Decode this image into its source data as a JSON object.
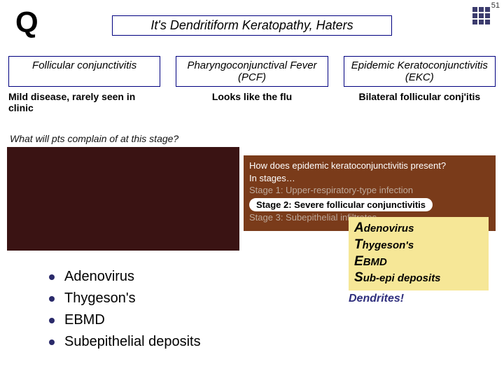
{
  "page_number": "51",
  "q_letter": "Q",
  "title": "It's Dendritiform Keratopathy, Haters",
  "col_headers": {
    "c1": "Follicular conjunctivitis",
    "c2": "Pharyngoconjunctival Fever (PCF)",
    "c3": "Epidemic Keratoconjunctivitis (EKC)"
  },
  "row2": {
    "c1": "Mild disease, rarely seen in clinic",
    "c2": "Looks like the flu",
    "c3": "Bilateral follicular conj'itis"
  },
  "question": "What will pts complain of at this stage?",
  "brown": {
    "q": "How does epidemic keratoconjunctivitis present?",
    "intro": "In stages…",
    "s1": "Stage 1: Upper-respiratory-type infection",
    "s2": "Stage 2: Severe follicular conjunctivitis",
    "s3a": "Stage 3: ",
    "s3b": "Subepithelial infiltrates"
  },
  "mnemonic": {
    "items": [
      {
        "lead": "A",
        "rest": "denovirus"
      },
      {
        "lead": "T",
        "rest": "hygeson's"
      },
      {
        "lead": "E",
        "rest": "BMD"
      },
      {
        "lead": "S",
        "rest": "ub-epi deposits"
      }
    ]
  },
  "dendrites": "Dendrites!",
  "list": {
    "items": [
      "Adenovirus",
      "Thygeson's",
      "EBMD",
      "Subepithelial deposits"
    ]
  },
  "colors": {
    "border": "#000080",
    "dark_block": "#3a1313",
    "brown_block": "#7a3b1a",
    "mnemonic_bg": "#f6e797",
    "dendrites": "#2f2f7d"
  }
}
